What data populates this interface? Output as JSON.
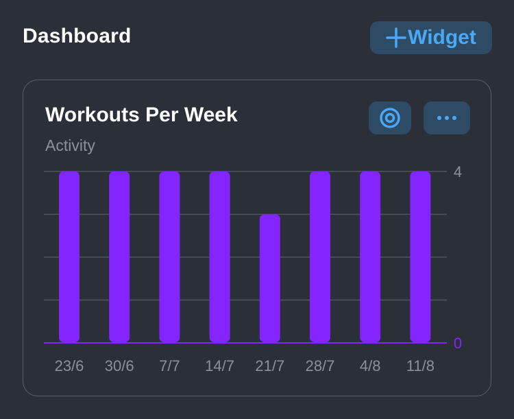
{
  "header": {
    "title": "Dashboard",
    "add_widget_label": "Widget"
  },
  "card": {
    "title": "Workouts Per Week",
    "subtitle": "Activity",
    "icons": {
      "target": "target-icon",
      "more": "more-dots-icon"
    }
  },
  "colors": {
    "background": "#2b3038",
    "accent": "#4aa8f5",
    "button_bg": "#2e4b66",
    "bar": "#8424ff",
    "gridline": "#4f555e"
  },
  "chart_data": {
    "type": "bar",
    "categories": [
      "23/6",
      "30/6",
      "7/7",
      "14/7",
      "21/7",
      "28/7",
      "4/8",
      "11/8"
    ],
    "values": [
      4,
      4,
      4,
      4,
      3,
      4,
      4,
      4
    ],
    "ylim": [
      0,
      4
    ],
    "y_tick_labels": [
      "0",
      "4"
    ],
    "y_axis_side": "right",
    "grid": true
  }
}
